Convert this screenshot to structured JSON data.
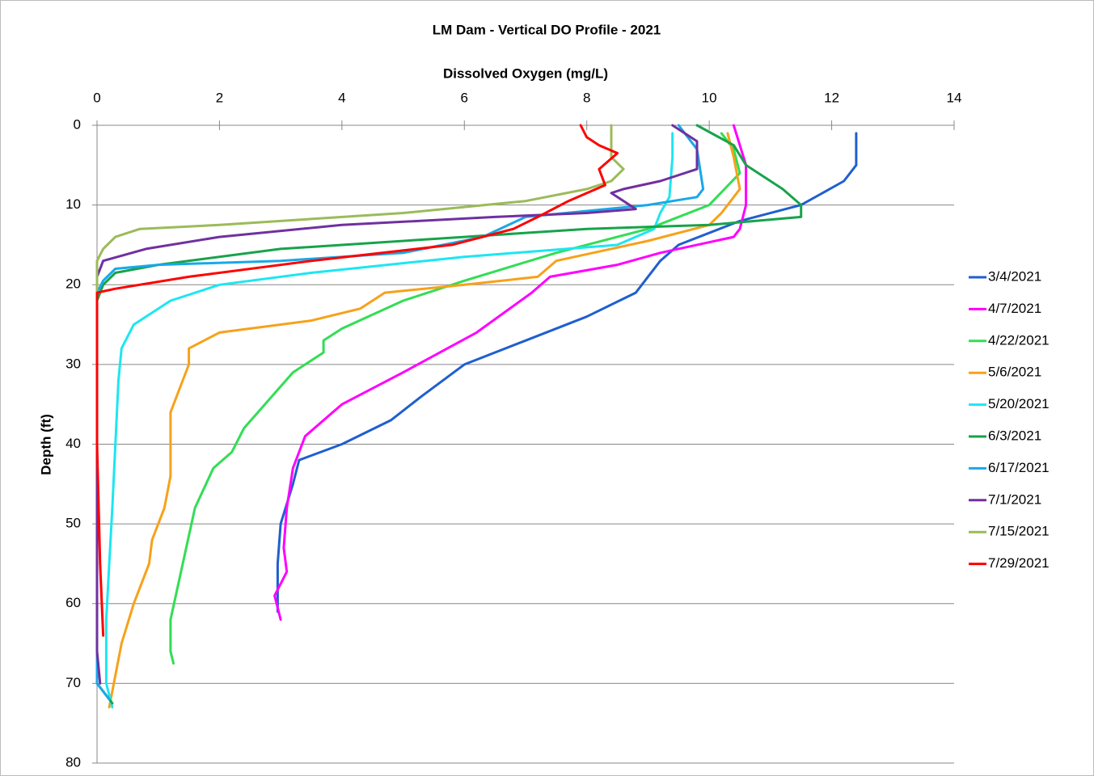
{
  "chart_data": {
    "type": "line",
    "title": "LM Dam - Vertical DO Profile - 2021",
    "x_label": "Dissolved Oxygen (mg/L)",
    "y_label": "Depth (ft)",
    "xlim": [
      0,
      14
    ],
    "xticks": [
      0,
      2,
      4,
      6,
      8,
      10,
      12,
      14
    ],
    "ylim": [
      0,
      80
    ],
    "yticks": [
      0,
      10,
      20,
      30,
      40,
      50,
      60,
      70,
      80
    ],
    "y_inverted": true,
    "grid": true,
    "legend": "right",
    "series": [
      {
        "name": "3/4/2021",
        "color": "#1F5FD0",
        "x": [
          12.4,
          12.4,
          12.2,
          11.5,
          10.5,
          9.5,
          9.2,
          9.0,
          8.8,
          8.0,
          7.0,
          6.0,
          5.3,
          4.8,
          4.0,
          3.3,
          3.2,
          3.0,
          2.95,
          2.95
        ],
        "values": [
          1,
          5,
          7,
          10,
          12,
          15,
          17,
          19,
          21,
          24,
          27,
          30,
          34,
          37,
          40,
          42,
          45,
          50,
          55,
          61
        ]
      },
      {
        "name": "4/7/2021",
        "color": "#FF00FF",
        "x": [
          10.4,
          10.6,
          10.6,
          10.5,
          10.4,
          9.2,
          8.5,
          7.4,
          7.1,
          6.2,
          5.0,
          4.0,
          3.4,
          3.2,
          3.1,
          3.05,
          3.1,
          2.9,
          3.0
        ],
        "values": [
          0,
          5,
          10,
          13,
          14,
          16,
          17.5,
          19,
          21,
          26,
          31,
          35,
          39,
          43,
          48,
          53,
          56,
          59,
          62
        ]
      },
      {
        "name": "4/22/2021",
        "color": "#33DD55",
        "x": [
          10.2,
          10.4,
          10.5,
          10.0,
          9.0,
          7.5,
          6.0,
          5.0,
          4.0,
          3.7,
          3.7,
          3.2,
          2.4,
          2.2,
          1.9,
          1.6,
          1.4,
          1.2,
          1.2,
          1.25
        ],
        "values": [
          1,
          3,
          6,
          10,
          13,
          16,
          19.5,
          22,
          25.5,
          27,
          28.5,
          31,
          38,
          41,
          43,
          48,
          55,
          62,
          66,
          67.5
        ]
      },
      {
        "name": "5/6/2021",
        "color": "#F7A11A",
        "x": [
          10.3,
          10.4,
          10.5,
          10.2,
          10.0,
          9.0,
          7.5,
          7.2,
          6.0,
          4.7,
          4.3,
          3.5,
          2.0,
          1.5,
          1.5,
          1.2,
          1.2,
          1.1,
          0.9,
          0.85,
          0.6,
          0.4,
          0.25,
          0.2
        ],
        "values": [
          1,
          4,
          8,
          11,
          12.5,
          14.5,
          17,
          19,
          20,
          21,
          23,
          24.5,
          26,
          28,
          30,
          36,
          44,
          48,
          52,
          55,
          60,
          65,
          71,
          73
        ]
      },
      {
        "name": "5/20/2021",
        "color": "#1CE6F2",
        "x": [
          9.4,
          9.4,
          9.35,
          9.2,
          9.1,
          8.5,
          6.0,
          3.5,
          2.0,
          1.2,
          0.6,
          0.4,
          0.35,
          0.3,
          0.25,
          0.2,
          0.15,
          0.15,
          0.25
        ],
        "values": [
          1,
          4,
          9,
          11,
          13,
          15,
          16.5,
          18.5,
          20,
          22,
          25,
          28,
          32,
          40,
          48,
          55,
          62,
          70,
          73
        ]
      },
      {
        "name": "6/3/2021",
        "color": "#17A34A",
        "x": [
          9.8,
          10.4,
          10.6,
          11.2,
          11.5,
          11.5,
          10.0,
          8.0,
          6.0,
          3.0,
          1.0,
          0.3,
          0.1,
          0,
          0,
          0.25
        ],
        "values": [
          0,
          2.5,
          5,
          8,
          10,
          11.5,
          12.5,
          13,
          14,
          15.5,
          17.5,
          18.5,
          20,
          22,
          70,
          72.5
        ]
      },
      {
        "name": "6/17/2021",
        "color": "#18A8E8",
        "x": [
          9.5,
          9.8,
          9.9,
          9.8,
          9.0,
          7.0,
          6.3,
          5.0,
          3.0,
          1.0,
          0.3,
          0.1,
          0,
          0,
          0.2
        ],
        "values": [
          0,
          3,
          8,
          9,
          10,
          11.5,
          14,
          16,
          17,
          17.5,
          18,
          19.5,
          21,
          70,
          72
        ]
      },
      {
        "name": "7/1/2021",
        "color": "#7030A0",
        "x": [
          9.4,
          9.8,
          9.8,
          9.2,
          8.6,
          8.4,
          8.8,
          8.0,
          6.5,
          4.0,
          2.0,
          0.8,
          0.1,
          0,
          0,
          0.05
        ],
        "values": [
          0,
          2,
          5.5,
          7,
          8,
          8.5,
          10.5,
          11,
          11.5,
          12.5,
          14,
          15.5,
          17,
          19,
          66,
          70
        ]
      },
      {
        "name": "7/15/2021",
        "color": "#9BBB59",
        "x": [
          8.4,
          8.4,
          8.6,
          8.4,
          8.0,
          7.0,
          5.0,
          2.0,
          0.7,
          0.3,
          0.1,
          0,
          0
        ],
        "values": [
          0,
          4,
          5.5,
          7,
          8,
          9.5,
          11,
          12.5,
          13,
          14,
          15.5,
          17,
          22
        ]
      },
      {
        "name": "7/29/2021",
        "color": "#FF0000",
        "x": [
          7.9,
          8.0,
          8.2,
          8.5,
          8.2,
          8.3,
          7.7,
          7.2,
          6.8,
          5.8,
          3.5,
          1.5,
          0.3,
          0,
          0,
          0.05,
          0.1
        ],
        "values": [
          0,
          1.5,
          2.5,
          3.5,
          5.5,
          7.5,
          9.5,
          11.5,
          13,
          15,
          17,
          19,
          20.5,
          21,
          40,
          55,
          64
        ]
      }
    ]
  }
}
